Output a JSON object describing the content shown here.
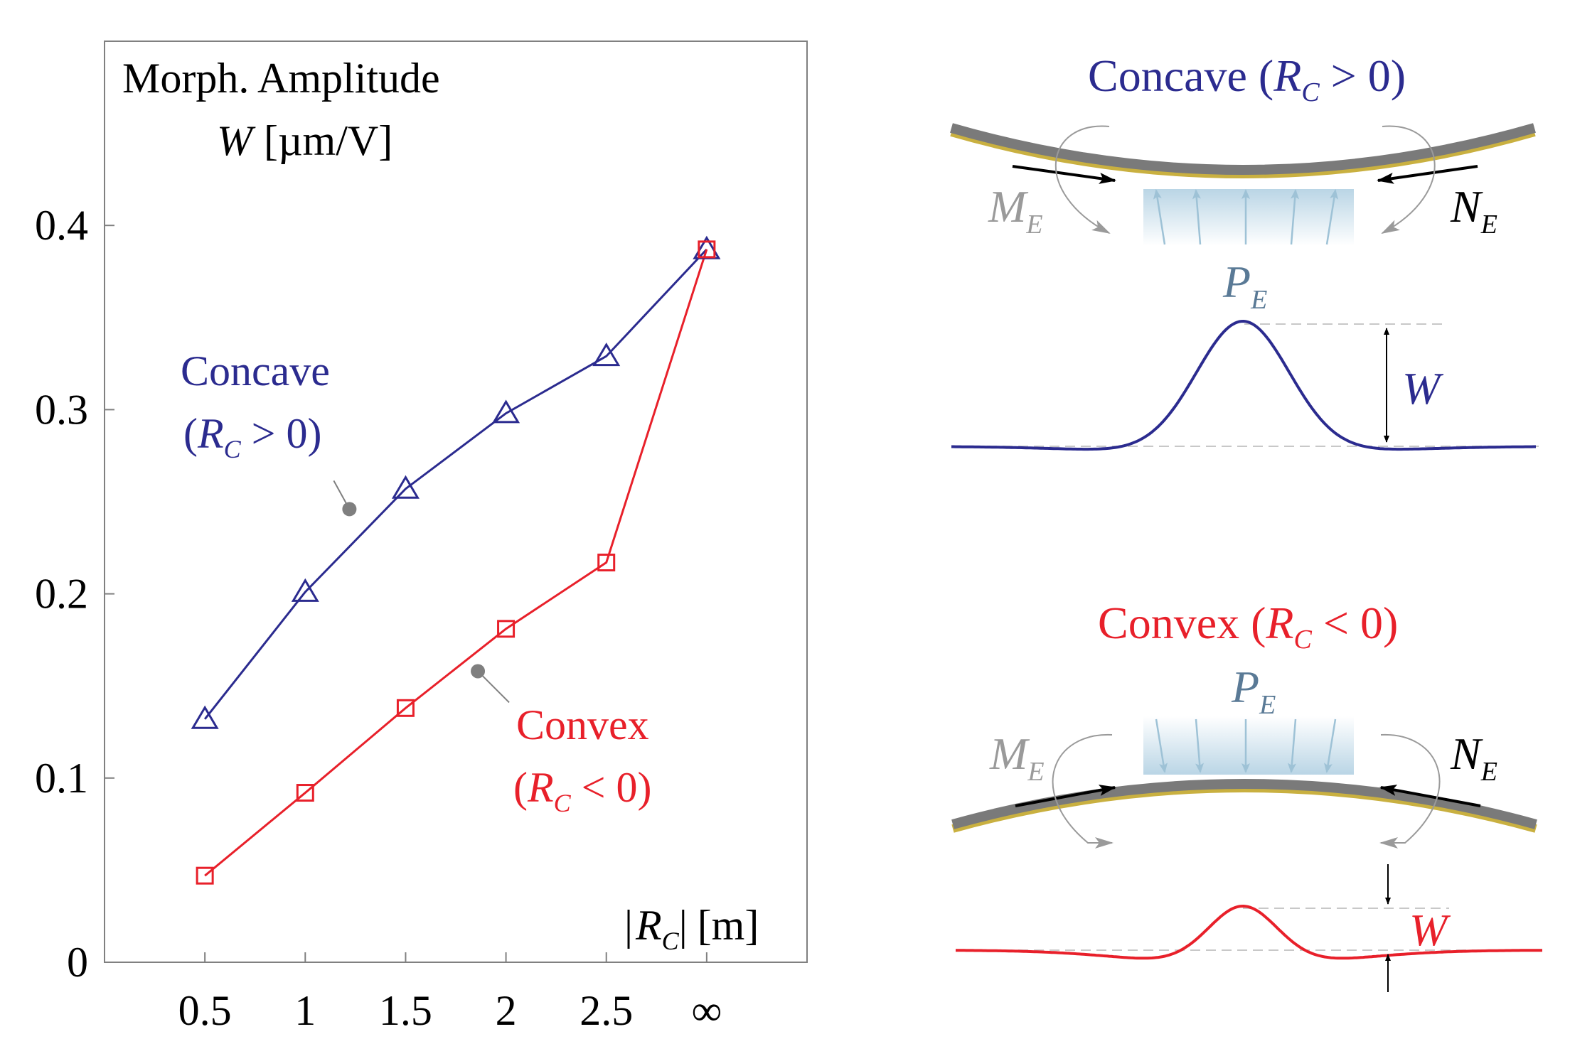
{
  "chart_data": {
    "type": "line",
    "title": "Morph. Amplitude",
    "ylabel": "W [µm/V]",
    "ylabel_symbol": "W",
    "ylabel_unit": "[µm/V]",
    "xlabel": "|R_C| [m]",
    "xlabel_symbol": "R",
    "xlabel_sub": "C",
    "xlabel_unit": "[m]",
    "categories": [
      "0.5",
      "1",
      "1.5",
      "2",
      "2.5",
      "∞"
    ],
    "x_positions": [
      0.5,
      1,
      1.5,
      2,
      2.5,
      3
    ],
    "xlim": [
      0,
      3.5
    ],
    "ylim": [
      0,
      0.5
    ],
    "yticks": [
      0,
      0.1,
      0.2,
      0.3,
      0.4
    ],
    "ytick_labels": [
      "0",
      "0.1",
      "0.2",
      "0.3",
      "0.4"
    ],
    "grid": false,
    "series": [
      {
        "name": "Concave (R_C > 0)",
        "line1": "Concave",
        "line2_open": "(",
        "line2_symbol": "R",
        "line2_sub": "C",
        "line2_rest": " > 0)",
        "marker": "triangle",
        "color": "#2b2b8f",
        "values": [
          0.132,
          0.201,
          0.257,
          0.298,
          0.329,
          0.387
        ],
        "label_anchor": [
          1.22,
          0.246
        ]
      },
      {
        "name": "Convex (R_C < 0)",
        "line1": "Convex",
        "line2_open": "(",
        "line2_symbol": "R",
        "line2_sub": "C",
        "line2_rest": " < 0)",
        "marker": "square",
        "color": "#e8202a",
        "values": [
          0.047,
          0.092,
          0.138,
          0.181,
          0.217,
          0.387
        ],
        "label_anchor": [
          1.86,
          0.158
        ]
      }
    ]
  },
  "schematics": {
    "concave": {
      "title_word": "Concave",
      "title_open": "(",
      "title_symbol": "R",
      "title_sub": "C",
      "title_rest": " > 0)",
      "color": "#2b2b8f"
    },
    "convex": {
      "title_word": "Convex",
      "title_open": "(",
      "title_symbol": "R",
      "title_sub": "C",
      "title_rest": " < 0)",
      "color": "#e8202a"
    },
    "moment_symbol": "M",
    "moment_sub": "E",
    "normal_symbol": "N",
    "normal_sub": "E",
    "pressure_symbol": "P",
    "pressure_sub": "E",
    "amplitude_symbol": "W",
    "colors": {
      "beam": "#7a7a7a",
      "moment": "#9a9a9a",
      "pressure_text": "#5a7a96",
      "pressure_arrow": "#9ec2d6",
      "callout": "#7f7f7f"
    }
  }
}
